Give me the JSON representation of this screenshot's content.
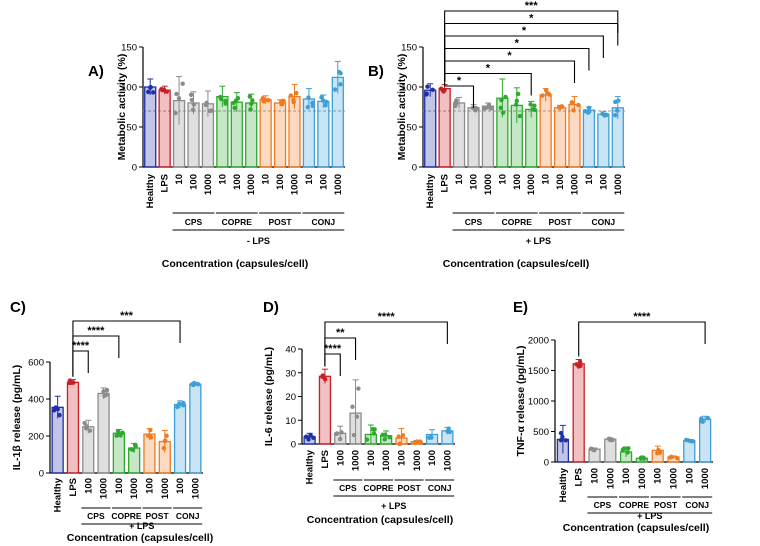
{
  "chart_data": [
    {
      "type": "bar",
      "panel": "A)",
      "ylabel": "Metabolic activity (%)",
      "xlabel": "Concentration (capsules/cell)",
      "ylim": [
        0,
        150
      ],
      "yticks": [
        0,
        50,
        100,
        150
      ],
      "categories": [
        "Healthy",
        "LPS",
        "10",
        "100",
        "1000",
        "10",
        "100",
        "1000",
        "10",
        "100",
        "1000",
        "10",
        "100",
        "1000"
      ],
      "values": [
        100,
        96,
        83,
        80,
        79,
        88,
        81,
        80,
        84,
        80,
        88,
        85,
        82,
        112
      ],
      "sd": [
        10,
        5,
        30,
        14,
        16,
        13,
        12,
        11,
        5,
        4,
        15,
        13,
        8,
        20
      ],
      "colors": [
        "#1f2fa6",
        "#c81e24",
        "#8c8c8c",
        "#8c8c8c",
        "#8c8c8c",
        "#2ea82e",
        "#2ea82e",
        "#2ea82e",
        "#f07a1f",
        "#f07a1f",
        "#f07a1f",
        "#3d9fd6",
        "#3d9fd6",
        "#3d9fd6"
      ],
      "groups": [
        {
          "label": "CPS",
          "start": 2,
          "end": 4
        },
        {
          "label": "COPRE",
          "start": 5,
          "end": 7
        },
        {
          "label": "POST",
          "start": 8,
          "end": 10
        },
        {
          "label": "CONJ",
          "start": 11,
          "end": 13
        }
      ],
      "group_caption": "- LPS",
      "refline": 70,
      "significance": []
    },
    {
      "type": "bar",
      "panel": "B)",
      "ylabel": "Metabolic activity (%)",
      "xlabel": "Concentration (capsules/cell)",
      "ylim": [
        0,
        150
      ],
      "yticks": [
        0,
        50,
        100,
        150
      ],
      "categories": [
        "Healthy",
        "LPS",
        "10",
        "100",
        "1000",
        "10",
        "100",
        "1000",
        "10",
        "100",
        "1000",
        "10",
        "100",
        "1000"
      ],
      "values": [
        96,
        98,
        80,
        74,
        76,
        86,
        77,
        72,
        90,
        74,
        78,
        71,
        66,
        74
      ],
      "sd": [
        8,
        5,
        7,
        4,
        4,
        24,
        22,
        10,
        8,
        3,
        10,
        4,
        3,
        14
      ],
      "colors": [
        "#1f2fa6",
        "#c81e24",
        "#8c8c8c",
        "#8c8c8c",
        "#8c8c8c",
        "#2ea82e",
        "#2ea82e",
        "#2ea82e",
        "#f07a1f",
        "#f07a1f",
        "#f07a1f",
        "#3d9fd6",
        "#3d9fd6",
        "#3d9fd6"
      ],
      "groups": [
        {
          "label": "CPS",
          "start": 2,
          "end": 4
        },
        {
          "label": "COPRE",
          "start": 5,
          "end": 7
        },
        {
          "label": "POST",
          "start": 8,
          "end": 10
        },
        {
          "label": "CONJ",
          "start": 11,
          "end": 13
        }
      ],
      "group_caption": "+ LPS",
      "refline": 70,
      "significance": [
        {
          "label": "*",
          "to": 3
        },
        {
          "label": "*",
          "to": 7
        },
        {
          "label": "*",
          "to": 10
        },
        {
          "label": "*",
          "to": 11
        },
        {
          "label": "*",
          "to": 12
        },
        {
          "label": "*",
          "to": 13
        },
        {
          "label": "***",
          "to": 13
        }
      ]
    },
    {
      "type": "bar",
      "panel": "C)",
      "ylabel": "IL-1β release (pg/mL)",
      "xlabel": "Concentration (capsules/cell)",
      "ylim": [
        0,
        600
      ],
      "yticks": [
        0,
        200,
        400,
        600
      ],
      "categories": [
        "Healthy",
        "LPS",
        "100",
        "1000",
        "100",
        "1000",
        "100",
        "1000",
        "100",
        "1000"
      ],
      "values": [
        355,
        490,
        250,
        430,
        215,
        135,
        210,
        170,
        370,
        480
      ],
      "sd": [
        60,
        15,
        35,
        30,
        20,
        25,
        30,
        60,
        20,
        10
      ],
      "colors": [
        "#1f2fa6",
        "#c81e24",
        "#8c8c8c",
        "#8c8c8c",
        "#2ea82e",
        "#2ea82e",
        "#f07a1f",
        "#f07a1f",
        "#3d9fd6",
        "#3d9fd6"
      ],
      "groups": [
        {
          "label": "CPS",
          "start": 2,
          "end": 3
        },
        {
          "label": "COPRE",
          "start": 4,
          "end": 5
        },
        {
          "label": "POST",
          "start": 6,
          "end": 7
        },
        {
          "label": "CONJ",
          "start": 8,
          "end": 9
        }
      ],
      "group_caption": "+ LPS",
      "significance": [
        {
          "label": "****",
          "to": 2
        },
        {
          "label": "****",
          "to": 4
        },
        {
          "label": "***",
          "to": 8
        }
      ]
    },
    {
      "type": "bar",
      "panel": "D)",
      "ylabel": "IL-6 release (pg/mL)",
      "xlabel": "Concentration (capsules/cell)",
      "ylim": [
        0,
        40
      ],
      "yticks": [
        0,
        10,
        20,
        30,
        40
      ],
      "categories": [
        "Healthy",
        "LPS",
        "100",
        "1000",
        "100",
        "1000",
        "100",
        "1000",
        "100",
        "1000"
      ],
      "values": [
        3,
        28.5,
        4.5,
        13,
        4,
        3.5,
        2.5,
        1,
        4,
        5.5
      ],
      "sd": [
        1.5,
        3,
        3,
        14,
        4,
        2,
        4,
        0.5,
        2,
        1.5
      ],
      "colors": [
        "#1f2fa6",
        "#c81e24",
        "#8c8c8c",
        "#8c8c8c",
        "#2ea82e",
        "#2ea82e",
        "#f07a1f",
        "#f07a1f",
        "#3d9fd6",
        "#3d9fd6"
      ],
      "groups": [
        {
          "label": "CPS",
          "start": 2,
          "end": 3
        },
        {
          "label": "COPRE",
          "start": 4,
          "end": 5
        },
        {
          "label": "POST",
          "start": 6,
          "end": 7
        },
        {
          "label": "CONJ",
          "start": 8,
          "end": 9
        }
      ],
      "group_caption": "+ LPS",
      "significance": [
        {
          "label": "****",
          "to": 2
        },
        {
          "label": "**",
          "to": 3
        },
        {
          "label": "****",
          "to": 9
        }
      ]
    },
    {
      "type": "bar",
      "panel": "E)",
      "ylabel": "TNF-α release (pg/mL)",
      "xlabel": "Concentration (capsules/cell)",
      "ylim": [
        0,
        2000
      ],
      "yticks": [
        0,
        500,
        1000,
        1500,
        2000
      ],
      "categories": [
        "Healthy",
        "LPS",
        "100",
        "1000",
        "100",
        "1000",
        "100",
        "1000",
        "100",
        "1000"
      ],
      "values": [
        370,
        1610,
        210,
        375,
        165,
        60,
        190,
        80,
        350,
        700
      ],
      "sd": [
        230,
        70,
        20,
        20,
        80,
        20,
        70,
        20,
        20,
        50
      ],
      "colors": [
        "#1f2fa6",
        "#c81e24",
        "#8c8c8c",
        "#8c8c8c",
        "#2ea82e",
        "#2ea82e",
        "#f07a1f",
        "#f07a1f",
        "#3d9fd6",
        "#3d9fd6"
      ],
      "groups": [
        {
          "label": "CPS",
          "start": 2,
          "end": 3
        },
        {
          "label": "COPRE",
          "start": 4,
          "end": 5
        },
        {
          "label": "POST",
          "start": 6,
          "end": 7
        },
        {
          "label": "CONJ",
          "start": 8,
          "end": 9
        }
      ],
      "group_caption": "+ LPS",
      "significance": [
        {
          "label": "****",
          "to": 9
        }
      ]
    }
  ]
}
